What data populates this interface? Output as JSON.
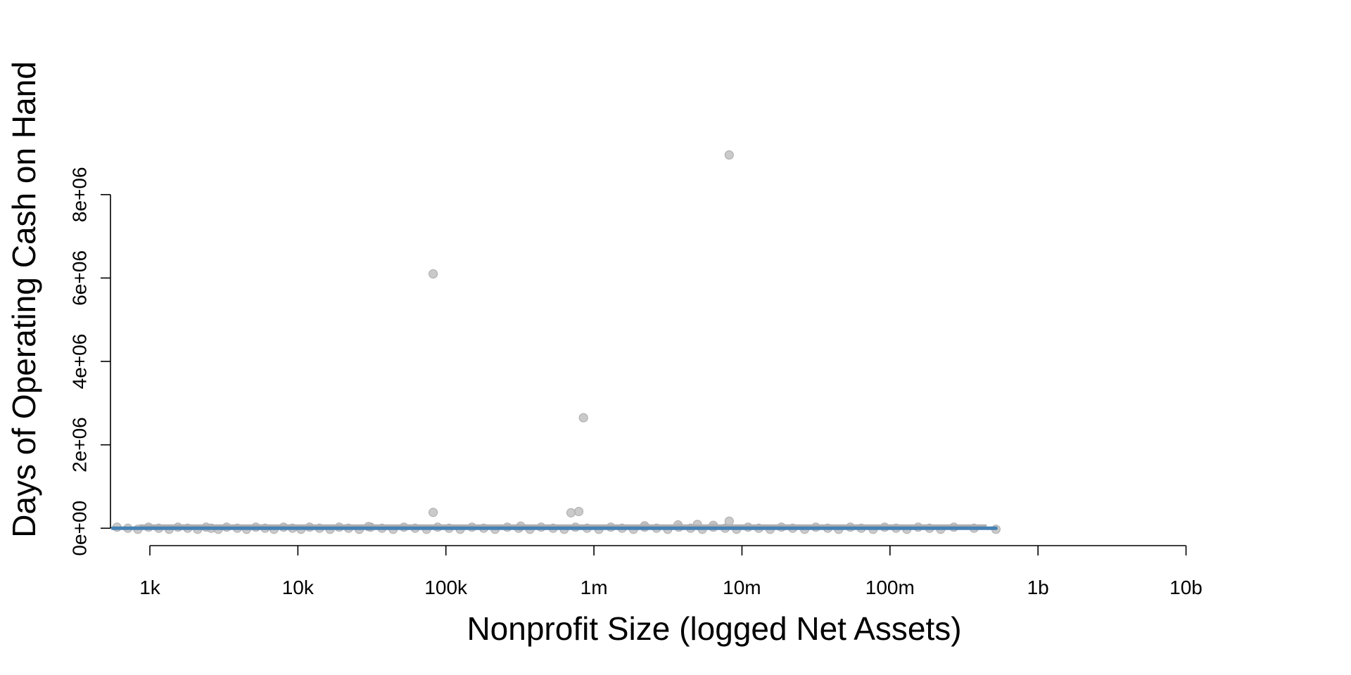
{
  "chart_data": {
    "type": "scatter",
    "xlabel": "Nonprofit Size (logged Net Assets)",
    "ylabel": "Days of Operating Cash on Hand",
    "x_scale": "log10",
    "xlim": [
      560,
      35000000000
    ],
    "ylim": [
      -400000,
      9800000
    ],
    "x_ticks": [
      1000,
      10000,
      100000,
      1000000,
      10000000,
      100000000,
      1000000000,
      10000000000
    ],
    "x_tick_labels": [
      "1k",
      "10k",
      "100k",
      "1m",
      "10m",
      "100m",
      "1b",
      "10b"
    ],
    "y_ticks": [
      0,
      2000000,
      4000000,
      6000000,
      8000000
    ],
    "y_tick_labels": [
      "0e+00",
      "2e+06",
      "4e+06",
      "6e+06",
      "8e+06"
    ],
    "grid": false,
    "legend": "none",
    "point_color": "#bdbdbd",
    "line_color": "#4682b4",
    "axis_color": "#000000",
    "outliers": [
      {
        "x": 8200000,
        "y": 8950000
      },
      {
        "x": 82000,
        "y": 6100000
      },
      {
        "x": 850000,
        "y": 2650000
      },
      {
        "x": 82000,
        "y": 380000
      },
      {
        "x": 700000,
        "y": 370000
      },
      {
        "x": 790000,
        "y": 400000
      },
      {
        "x": 8200000,
        "y": 170000
      },
      {
        "x": 5000000,
        "y": 90000
      },
      {
        "x": 3700000,
        "y": 80000
      },
      {
        "x": 6400000,
        "y": 70000
      },
      {
        "x": 2200000,
        "y": 60000
      },
      {
        "x": 320000,
        "y": 50000
      },
      {
        "x": 30000,
        "y": 40000
      }
    ],
    "baseline_points_x": [
      600,
      710,
      830,
      980,
      1150,
      1350,
      1550,
      1800,
      2100,
      2400,
      2600,
      2900,
      3300,
      3900,
      4500,
      5200,
      6000,
      6900,
      8000,
      9200,
      10500,
      12000,
      14000,
      16500,
      19000,
      22000,
      26000,
      31000,
      37000,
      44000,
      52000,
      62000,
      74000,
      88000,
      105000,
      125000,
      150000,
      180000,
      215000,
      260000,
      310000,
      370000,
      440000,
      530000,
      630000,
      750000,
      900000,
      1080000,
      1300000,
      1550000,
      1850000,
      2200000,
      2650000,
      3150000,
      3750000,
      4500000,
      5400000,
      6400000,
      7700000,
      9200000,
      11000000,
      13000000,
      15500000,
      18500000,
      22000000,
      26500000,
      31500000,
      38000000,
      45000000,
      54000000,
      64000000,
      77000000,
      92000000,
      110000000,
      130000000,
      155000000,
      185000000,
      220000000,
      270000000,
      370000000,
      520000000
    ],
    "trend_line": {
      "x": [
        560,
        520000000
      ],
      "y": [
        0,
        0
      ]
    }
  }
}
